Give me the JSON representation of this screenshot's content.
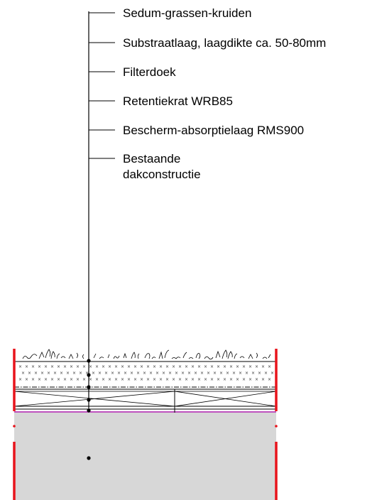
{
  "labels": [
    {
      "lines": [
        "Sedum-grassen-kruiden"
      ]
    },
    {
      "lines": [
        "Substraatlaag, laagdikte ca. 50-80mm"
      ]
    },
    {
      "lines": [
        "Filterdoek"
      ]
    },
    {
      "lines": [
        "Retentiekrat WRB85"
      ]
    },
    {
      "lines": [
        "Bescherm-absorptielaag RMS900"
      ]
    },
    {
      "lines": [
        "Bestaande",
        "dakconstructie"
      ]
    }
  ],
  "colors": {
    "line": "#000000",
    "edge": "#e8141c",
    "membrane": "#b43ab4",
    "existing_roof": "#d7d7d7"
  }
}
